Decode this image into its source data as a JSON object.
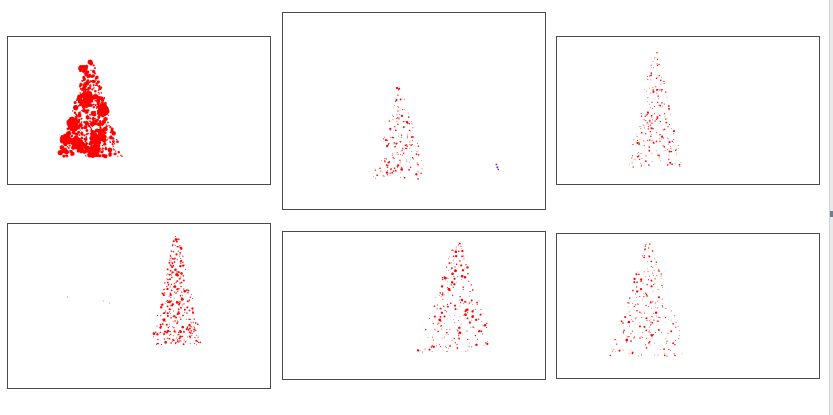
{
  "colors": {
    "background": "#ffffff",
    "panel_border": "#4a4a4a",
    "dots": "#ff0000",
    "accent_dot": "#2a3cff",
    "edge_strip": "#e9e9e9"
  },
  "panels": [
    {
      "name": "panel-top-left",
      "dense": true
    },
    {
      "name": "panel-top-middle",
      "dense": false,
      "extra_blue_mark": true
    },
    {
      "name": "panel-top-right",
      "dense": false
    },
    {
      "name": "panel-bottom-left",
      "dense": false,
      "medium": true
    },
    {
      "name": "panel-bottom-middle",
      "dense": false
    },
    {
      "name": "panel-bottom-right",
      "dense": false
    }
  ]
}
